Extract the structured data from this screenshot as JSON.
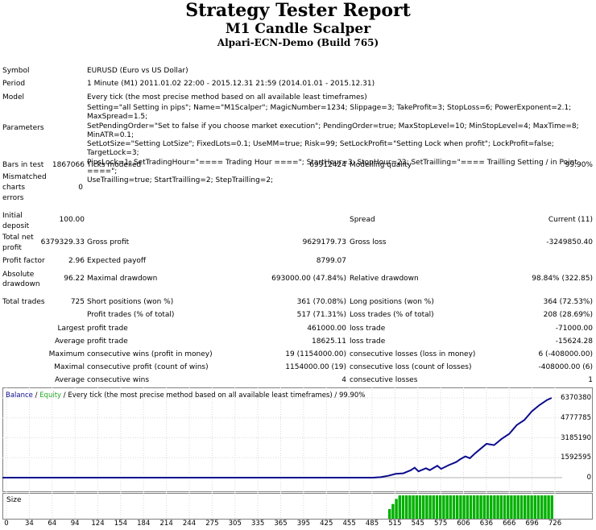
{
  "header": {
    "title": "Strategy Tester Report",
    "expert": "M1 Candle Scalper",
    "server": "Alpari-ECN-Demo (Build 765)"
  },
  "info": {
    "symbol_label": "Symbol",
    "symbol_value": "EURUSD (Euro vs US Dollar)",
    "period_label": "Period",
    "period_value": "1 Minute (M1) 2011.01.02 22:00 - 2015.12.31 21:59 (2014.01.01 - 2015.12.31)",
    "model_label": "Model",
    "model_value": "Every tick (the most precise method based on all available least timeframes)",
    "parameters_label": "Parameters",
    "parameters_lines": [
      "Setting=\"all Setting in pips\"; Name=\"M1Scalper\"; MagicNumber=1234; Slippage=3; TakeProfit=3; StopLoss=6; PowerExponent=2.1; MaxSpread=1.5;",
      "SetPendingOrder=\"Set to false if you choose market execution\"; PendingOrder=true; MaxStopLevel=10; MinStopLevel=4; MaxTime=8; MinATR=0.1;",
      "SetLotSize=\"Setting LotSize\"; FixedLots=0.1; UseMM=true; Risk=99; SetLockProfit=\"Setting Lock when profit\"; LockProfit=false; TargetLock=3;",
      "PipsLock=1; SetTradingHour=\"==== Trading Hour ====\"; StartHour=3; StopHour=22; SetTrailling=\"==== Trailling Setting / in Point ====\";",
      "UseTrailling=true; StartTrailling=2; StepTrailling=2;"
    ]
  },
  "stats": {
    "bars_label": "Bars in test",
    "bars_value": "1867066",
    "ticks_label": "Ticks modelled",
    "ticks_value": "69912424",
    "quality_label": "Modelling quality",
    "quality_value": "99.90%",
    "mismatch_label_1": "Mismatched",
    "mismatch_label_2": "charts",
    "mismatch_label_3": "errors",
    "mismatch_value": "0",
    "deposit_label_1": "Initial",
    "deposit_label_2": "deposit",
    "deposit_value": "100.00",
    "spread_label": "Spread",
    "spread_value": "Current (11)",
    "netprofit_label_1": "Total net",
    "netprofit_label_2": "profit",
    "netprofit_value": "6379329.33",
    "grossprofit_label": "Gross profit",
    "grossprofit_value": "9629179.73",
    "grossloss_label": "Gross loss",
    "grossloss_value": "-3249850.40",
    "pf_label": "Profit factor",
    "pf_value": "2.96",
    "payoff_label": "Expected payoff",
    "payoff_value": "8799.07",
    "absdd_label_1": "Absolute",
    "absdd_label_2": "drawdown",
    "absdd_value": "96.22",
    "maxdd_label": "Maximal drawdown",
    "maxdd_value": "693000.00 (47.84%)",
    "reldd_label": "Relative drawdown",
    "reldd_value": "98.84% (322.85)",
    "trades_label": "Total trades",
    "trades_value": "725",
    "short_label": "Short positions (won %)",
    "short_value": "361 (70.08%)",
    "long_label": "Long positions (won %)",
    "long_value": "364 (72.53%)",
    "profit_trades_label": "Profit trades (% of total)",
    "profit_trades_value": "517 (71.31%)",
    "loss_trades_label": "Loss trades (% of total)",
    "loss_trades_value": "208 (28.69%)",
    "largest_label": "Largest",
    "largest_profit_label": "profit trade",
    "largest_profit_value": "461000.00",
    "largest_loss_label": "loss trade",
    "largest_loss_value": "-71000.00",
    "average_label": "Average",
    "average_profit_label": "profit trade",
    "average_profit_value": "18625.11",
    "average_loss_label": "loss trade",
    "average_loss_value": "-15624.28",
    "maximum_label": "Maximum",
    "max_wins_label": "consecutive wins (profit in money)",
    "max_wins_value": "19 (1154000.00)",
    "max_losses_label": "consecutive losses (loss in money)",
    "max_losses_value": "6 (-408000.00)",
    "maximal_label": "Maximal",
    "maximal_profit_label": "consecutive profit (count of wins)",
    "maximal_profit_value": "1154000.00 (19)",
    "maximal_loss_label": "consecutive loss (count of losses)",
    "maximal_loss_value": "-408000.00 (6)",
    "avg_cons_label": "Average",
    "avg_wins_label": "consecutive wins",
    "avg_wins_value": "4",
    "avg_losses_label": "consecutive losses",
    "avg_losses_value": "1"
  },
  "chart_data": {
    "type": "line",
    "legend_balance": "Balance",
    "legend_sep": " / ",
    "legend_equity": "Equity",
    "legend_rest": " / Every tick (the most precise method based on all available least timeframes) / 99.90%",
    "size_label": "Size",
    "yticks": [
      "6370380",
      "4777785",
      "3185190",
      "1592595",
      "0"
    ],
    "xticks": [
      "0",
      "34",
      "64",
      "94",
      "124",
      "154",
      "184",
      "214",
      "244",
      "275",
      "305",
      "335",
      "365",
      "395",
      "425",
      "455",
      "485",
      "515",
      "545",
      "575",
      "606",
      "636",
      "666",
      "696",
      "726"
    ],
    "ylim": [
      0,
      6370380
    ],
    "xlim": [
      0,
      740
    ],
    "balance_color": "#0a0a8c",
    "equity_color": "#22aa22",
    "size_color": "#00b000",
    "series": [
      {
        "name": "Balance",
        "x": [
          0,
          490,
          500,
          510,
          520,
          530,
          540,
          545,
          550,
          560,
          565,
          575,
          580,
          590,
          600,
          606,
          612,
          618,
          625,
          630,
          640,
          650,
          660,
          670,
          680,
          690,
          700,
          710,
          720,
          726
        ],
        "values": [
          100,
          100,
          40000,
          150000,
          300000,
          350000,
          600000,
          800000,
          500000,
          750000,
          600000,
          950000,
          700000,
          1000000,
          1250000,
          1500000,
          1700000,
          1550000,
          1950000,
          2200000,
          2700000,
          2600000,
          3100000,
          3500000,
          4200000,
          4600000,
          5300000,
          5800000,
          6200000,
          6370380
        ]
      }
    ],
    "size_bars": {
      "x_start": 510,
      "x_end": 726
    }
  }
}
